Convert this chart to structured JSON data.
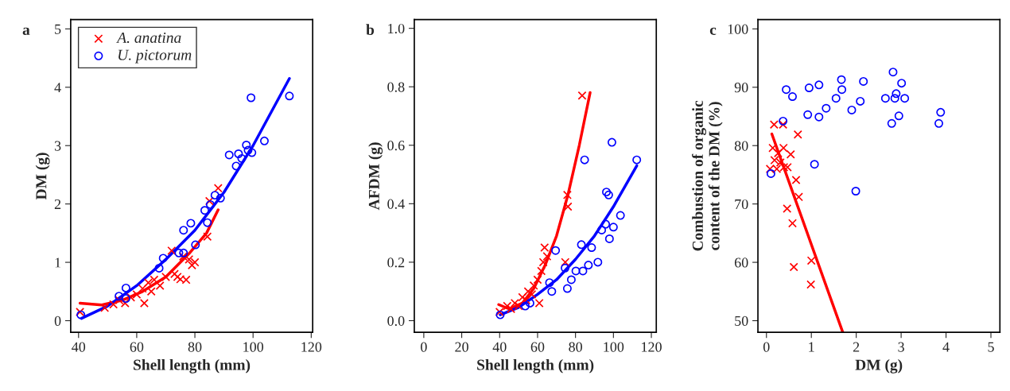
{
  "chart_data": [
    {
      "type": "scatter",
      "title": "a",
      "xlabel": "Shell length (mm)",
      "ylabel": "DM (g)",
      "xlim": [
        37.3,
        120.5
      ],
      "ylim": [
        -0.2,
        5.16
      ],
      "xticks": [
        40,
        60,
        80,
        100,
        120
      ],
      "yticks": [
        0,
        1,
        2,
        3,
        4,
        5
      ],
      "grid": false,
      "legend": "top left",
      "series": [
        {
          "name": "A. anatina",
          "marker": "cross",
          "color": "#ff0000",
          "x": [
            40.5,
            49,
            52,
            54,
            56,
            58,
            60,
            62,
            62.6,
            64,
            65,
            66,
            68,
            70,
            72,
            73,
            74,
            75,
            76,
            77,
            78,
            79,
            80,
            84.3,
            85,
            88
          ],
          "values": [
            0.15,
            0.22,
            0.28,
            0.35,
            0.3,
            0.4,
            0.45,
            0.55,
            0.3,
            0.65,
            0.5,
            0.7,
            0.6,
            0.75,
            1.2,
            0.8,
            0.75,
            0.71,
            1.1,
            0.7,
            1.05,
            0.95,
            1.0,
            1.44,
            2.05,
            2.27
          ]
        },
        {
          "name": "U. pictorum",
          "marker": "circle",
          "color": "#0000ff",
          "x": [
            40.8,
            53.9,
            56.3,
            56.3,
            67.7,
            69.1,
            74.5,
            76.1,
            76.1,
            78.6,
            80.2,
            84.3,
            83.4,
            85.3,
            86.9,
            88.8,
            91.8,
            94.2,
            95.0,
            96.1,
            97.7,
            98.3,
            99.6,
            99.3,
            103.9,
            112.5
          ],
          "values": [
            0.1,
            0.42,
            0.56,
            0.38,
            0.9,
            1.07,
            1.16,
            1.16,
            1.55,
            1.67,
            1.3,
            1.68,
            1.89,
            1.99,
            2.15,
            2.1,
            2.84,
            2.65,
            2.86,
            2.78,
            3.01,
            2.92,
            2.88,
            3.82,
            3.08,
            3.85
          ]
        },
        {
          "type": "line",
          "marker": "none",
          "color": "#ff0000",
          "x": [
            40.5,
            48,
            55,
            62,
            70,
            78,
            84,
            88
          ],
          "values": [
            0.3,
            0.27,
            0.35,
            0.5,
            0.75,
            1.15,
            1.5,
            1.9
          ]
        },
        {
          "type": "line",
          "marker": "none",
          "color": "#0000ff",
          "x": [
            41,
            50,
            60,
            70,
            80,
            90,
            100,
            112.5
          ],
          "values": [
            0.04,
            0.25,
            0.6,
            1.05,
            1.55,
            2.2,
            3.0,
            4.15
          ]
        }
      ]
    },
    {
      "type": "scatter",
      "title": "b",
      "xlabel": "Shell length (mm)",
      "ylabel": "AFDM (g)",
      "xlim": [
        -5,
        122.6
      ],
      "ylim": [
        -0.04,
        1.03
      ],
      "xticks": [
        0,
        20,
        40,
        60,
        80,
        100,
        120
      ],
      "yticks": [
        {
          "value": 0,
          "label": "0.0"
        },
        0.2,
        0.4,
        0.6,
        0.8,
        {
          "value": 1,
          "label": "1.0"
        }
      ],
      "grid": false,
      "legend": false,
      "series": [
        {
          "marker": "cross",
          "color": "#ff0000",
          "x": [
            40,
            44,
            46,
            48,
            50,
            52,
            54,
            55,
            57,
            58,
            60,
            60.9,
            62,
            63,
            63.7,
            65,
            74.6,
            75.7,
            76,
            83.5
          ],
          "values": [
            0.03,
            0.05,
            0.04,
            0.06,
            0.05,
            0.08,
            0.07,
            0.1,
            0.09,
            0.12,
            0.14,
            0.06,
            0.17,
            0.2,
            0.25,
            0.22,
            0.2,
            0.43,
            0.39,
            0.77
          ]
        },
        {
          "marker": "circle",
          "color": "#0000ff",
          "x": [
            40.3,
            53.5,
            56,
            66.3,
            67.5,
            69.5,
            74.5,
            75.7,
            77.8,
            80.2,
            83.1,
            83.9,
            84.8,
            86.8,
            88.5,
            91.8,
            93.8,
            95.9,
            96.3,
            97.5,
            97.9,
            100,
            99.2,
            103.7,
            112.3
          ],
          "values": [
            0.02,
            0.05,
            0.06,
            0.13,
            0.1,
            0.24,
            0.18,
            0.11,
            0.14,
            0.17,
            0.26,
            0.17,
            0.55,
            0.19,
            0.25,
            0.2,
            0.31,
            0.33,
            0.44,
            0.43,
            0.28,
            0.32,
            0.61,
            0.36,
            0.55
          ]
        },
        {
          "type": "line",
          "marker": "none",
          "color": "#ff0000",
          "x": [
            39.5,
            45,
            52,
            58,
            64,
            70,
            76,
            82,
            87.7
          ],
          "values": [
            0.055,
            0.04,
            0.06,
            0.11,
            0.19,
            0.29,
            0.43,
            0.6,
            0.78
          ]
        },
        {
          "type": "line",
          "marker": "none",
          "color": "#0000ff",
          "x": [
            40.3,
            50,
            60,
            70,
            80,
            90,
            100,
            112.3
          ],
          "values": [
            0.02,
            0.045,
            0.09,
            0.14,
            0.21,
            0.29,
            0.39,
            0.53
          ]
        }
      ]
    },
    {
      "type": "scatter",
      "title": "c",
      "xlabel": "DM (g)",
      "ylabel": "Combustion of organic\ncontent of the DM (%)",
      "xlim": [
        -0.19,
        5.2
      ],
      "ylim": [
        48,
        101.6
      ],
      "xticks": [
        0,
        1,
        2,
        3,
        4,
        5
      ],
      "yticks": [
        50,
        60,
        70,
        80,
        90,
        100
      ],
      "grid": false,
      "legend": false,
      "series": [
        {
          "marker": "cross",
          "color": "#ff0000",
          "x": [
            0.17,
            0.37,
            0.7,
            0.14,
            0.38,
            0.54,
            0.26,
            0.18,
            0.31,
            0.39,
            0.08,
            0.47,
            0.66,
            0.72,
            0.46,
            0.58,
            0.61,
            1.0,
            0.99,
            0.23
          ],
          "values": [
            83.6,
            83.6,
            81.9,
            79.6,
            79.6,
            78.5,
            78.7,
            77.5,
            77.1,
            76.3,
            76.0,
            76.3,
            74.1,
            71.2,
            69.2,
            66.7,
            59.2,
            60.3,
            56.2,
            76
          ]
        },
        {
          "marker": "circle",
          "color": "#0000ff",
          "x": [
            0.1,
            0.37,
            0.44,
            0.58,
            0.92,
            0.95,
            1.07,
            1.17,
            1.17,
            1.33,
            1.55,
            1.67,
            1.68,
            1.9,
            1.99,
            2.09,
            2.16,
            2.65,
            2.79,
            2.82,
            2.86,
            2.89,
            2.95,
            3.01,
            3.08,
            3.84,
            3.88
          ],
          "values": [
            75.2,
            84.2,
            89.6,
            88.4,
            85.3,
            89.9,
            76.8,
            90.4,
            84.9,
            86.4,
            88.1,
            91.3,
            89.6,
            86.1,
            72.2,
            87.6,
            91.0,
            88.1,
            83.8,
            92.6,
            88.1,
            88.9,
            85.1,
            90.7,
            88.1,
            83.8,
            85.7
          ]
        },
        {
          "type": "line",
          "marker": "none",
          "color": "#ff0000",
          "x": [
            0.12,
            1.7
          ],
          "values": [
            82.0,
            48.0
          ]
        }
      ]
    }
  ]
}
